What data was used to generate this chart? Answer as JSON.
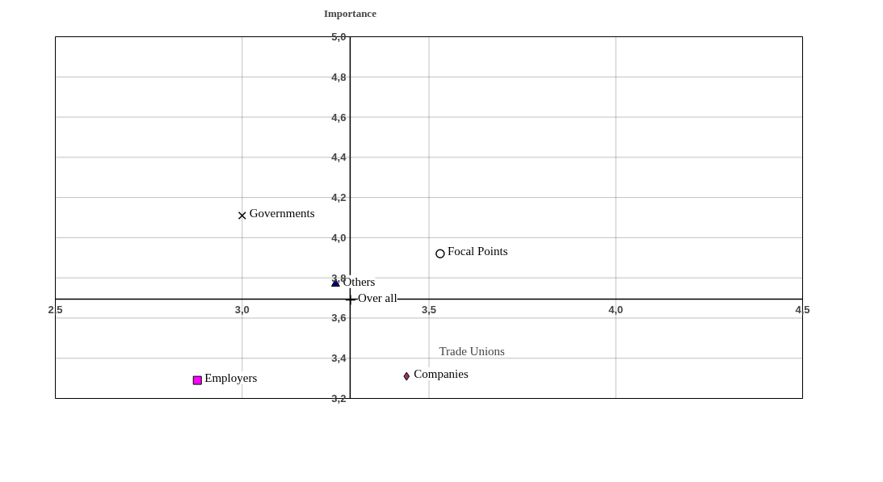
{
  "chart_data": {
    "type": "scatter",
    "ylabel": "Importance",
    "xlim": [
      2.5,
      4.5
    ],
    "ylim": [
      3.2,
      5.0
    ],
    "xticks": [
      {
        "value": 2.5,
        "label": "2,5"
      },
      {
        "value": 3.0,
        "label": "3,0"
      },
      {
        "value": 3.5,
        "label": "3,5"
      },
      {
        "value": 4.0,
        "label": "4,0"
      },
      {
        "value": 4.5,
        "label": "4,5"
      }
    ],
    "yticks": [
      {
        "value": 3.2,
        "label": "3,2"
      },
      {
        "value": 3.4,
        "label": "3,4"
      },
      {
        "value": 3.6,
        "label": "3,6"
      },
      {
        "value": 3.8,
        "label": "3,8"
      },
      {
        "value": 4.0,
        "label": "4,0"
      },
      {
        "value": 4.2,
        "label": "4,2"
      },
      {
        "value": 4.4,
        "label": "4,4"
      },
      {
        "value": 4.6,
        "label": "4,6"
      },
      {
        "value": 4.8,
        "label": "4,8"
      },
      {
        "value": 5.0,
        "label": "5,0"
      }
    ],
    "grid": true,
    "series": [
      {
        "name": "Governments",
        "color": "#000000",
        "marker": "x",
        "x": [
          3.0
        ],
        "values": [
          4.11
        ]
      },
      {
        "name": "Focal Points",
        "color": "#000000",
        "marker": "circle",
        "x": [
          3.53
        ],
        "values": [
          3.92
        ]
      },
      {
        "name": "Others",
        "color": "#000080",
        "marker": "triangle",
        "x": [
          3.25
        ],
        "values": [
          3.77
        ]
      },
      {
        "name": "Over all",
        "color": "#000000",
        "marker": "cross",
        "x": [
          3.29
        ],
        "values": [
          3.69
        ]
      },
      {
        "name": "Employers",
        "color": "#ff00ff",
        "marker": "square",
        "x": [
          2.88
        ],
        "values": [
          3.29
        ]
      },
      {
        "name": "Companies",
        "color": "#993366",
        "marker": "diamond",
        "x": [
          3.44
        ],
        "values": [
          3.31
        ]
      }
    ],
    "annotations": [
      "Trade Unions"
    ]
  }
}
